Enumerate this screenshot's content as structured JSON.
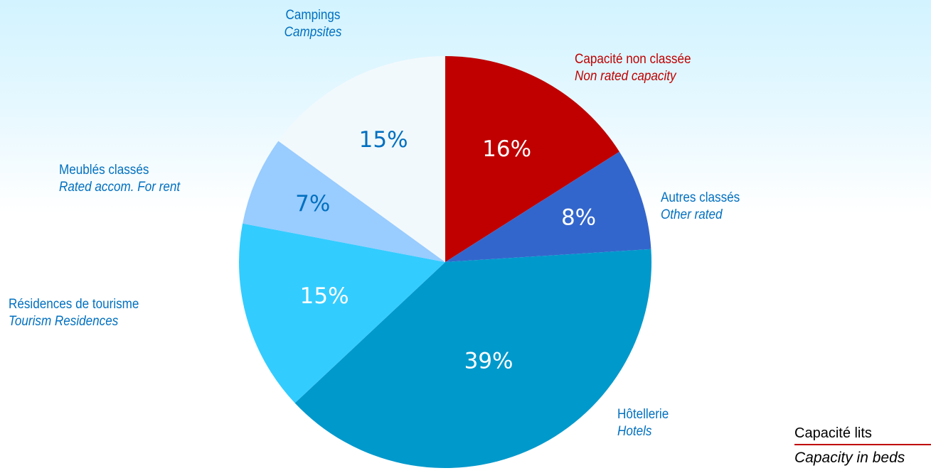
{
  "chart_data": {
    "type": "pie",
    "start_angle_deg": 0,
    "direction": "clockwise",
    "slices": [
      {
        "fr": "Capacité non classée",
        "en": "Non rated capacity",
        "value": 16,
        "label": "16%",
        "color": "#c00000",
        "text_color": "#ffffff",
        "label_color": "#c00000"
      },
      {
        "fr": "Autres classés",
        "en": "Other rated",
        "value": 8,
        "label": "8%",
        "color": "#3366cc",
        "text_color": "#ffffff",
        "label_color": "#0070c0"
      },
      {
        "fr": "Hôtellerie",
        "en": "Hotels",
        "value": 39,
        "label": "39%",
        "color": "#0099cc",
        "text_color": "#ffffff",
        "label_color": "#0070c0"
      },
      {
        "fr": "Résidences de tourisme",
        "en": "Tourism Residences",
        "value": 15,
        "label": "15%",
        "color": "#33ccff",
        "text_color": "#ffffff",
        "label_color": "#0070c0"
      },
      {
        "fr": "Meublés classés",
        "en": "Rated accom. For rent",
        "value": 7,
        "label": "7%",
        "color": "#99ccff",
        "text_color": "#0070c0",
        "label_color": "#0070c0"
      },
      {
        "fr": "Campings",
        "en": "Campsites",
        "value": 15,
        "label": "15%",
        "color": "#f2f9fc",
        "text_color": "#0070c0",
        "label_color": "#0070c0"
      }
    ]
  },
  "caption": {
    "fr": "Capacité lits",
    "en": "Capacity in beds"
  }
}
